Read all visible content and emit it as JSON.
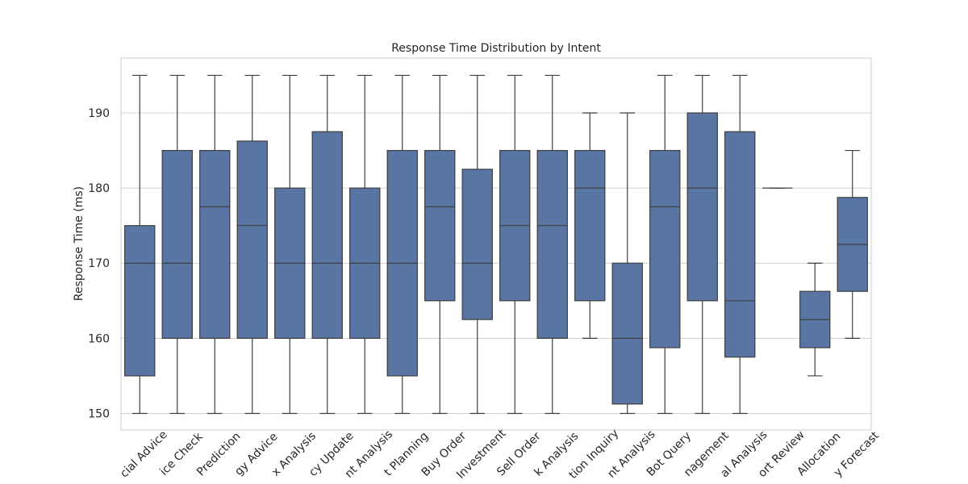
{
  "chart_data": {
    "type": "box",
    "title": "Response Time Distribution by Intent",
    "y_label": "Response Time (ms)",
    "categories": [
      "cial Advice",
      "ice Check",
      "Prediction",
      "gy Advice",
      "x Analysis",
      "cy Update",
      "nt Analysis",
      "t Planning",
      "Buy Order",
      "Investment",
      "Sell Order",
      "k Analysis",
      "tion Inquiry",
      "nt Analysis",
      "Bot Query",
      "nagement",
      "al Analysis",
      "ort Review",
      "Allocation",
      "y Forecast"
    ],
    "boxes": [
      {
        "min": 150,
        "q1": 155,
        "median": 170,
        "q3": 175,
        "max": 195
      },
      {
        "min": 150,
        "q1": 160,
        "median": 170,
        "q3": 185,
        "max": 195
      },
      {
        "min": 150,
        "q1": 160,
        "median": 177.5,
        "q3": 185,
        "max": 195
      },
      {
        "min": 150,
        "q1": 160,
        "median": 175,
        "q3": 186.25,
        "max": 195
      },
      {
        "min": 150,
        "q1": 160,
        "median": 170,
        "q3": 180,
        "max": 195
      },
      {
        "min": 150,
        "q1": 160,
        "median": 170,
        "q3": 187.5,
        "max": 195
      },
      {
        "min": 150,
        "q1": 160,
        "median": 170,
        "q3": 180,
        "max": 195
      },
      {
        "min": 150,
        "q1": 155,
        "median": 170,
        "q3": 185,
        "max": 195
      },
      {
        "min": 150,
        "q1": 165,
        "median": 177.5,
        "q3": 185,
        "max": 195
      },
      {
        "min": 150,
        "q1": 162.5,
        "median": 170,
        "q3": 182.5,
        "max": 195
      },
      {
        "min": 150,
        "q1": 165,
        "median": 175,
        "q3": 185,
        "max": 195
      },
      {
        "min": 150,
        "q1": 160,
        "median": 175,
        "q3": 185,
        "max": 195
      },
      {
        "min": 160,
        "q1": 165,
        "median": 180,
        "q3": 185,
        "max": 190
      },
      {
        "min": 150,
        "q1": 151.25,
        "median": 160,
        "q3": 170,
        "max": 190
      },
      {
        "min": 150,
        "q1": 158.75,
        "median": 177.5,
        "q3": 185,
        "max": 195
      },
      {
        "min": 150,
        "q1": 165,
        "median": 180,
        "q3": 190,
        "max": 195
      },
      {
        "min": 150,
        "q1": 157.5,
        "median": 165,
        "q3": 187.5,
        "max": 195
      },
      {
        "min": 180,
        "q1": 180,
        "median": 180,
        "q3": 180,
        "max": 180
      },
      {
        "min": 155,
        "q1": 158.75,
        "median": 162.5,
        "q3": 166.25,
        "max": 170
      },
      {
        "min": 160,
        "q1": 166.25,
        "median": 172.5,
        "q3": 178.75,
        "max": 185
      }
    ],
    "color": "#5875a4",
    "ylim": [
      147.8,
      197.3
    ],
    "yticks": [
      150,
      160,
      170,
      180,
      190
    ],
    "grid": true
  }
}
